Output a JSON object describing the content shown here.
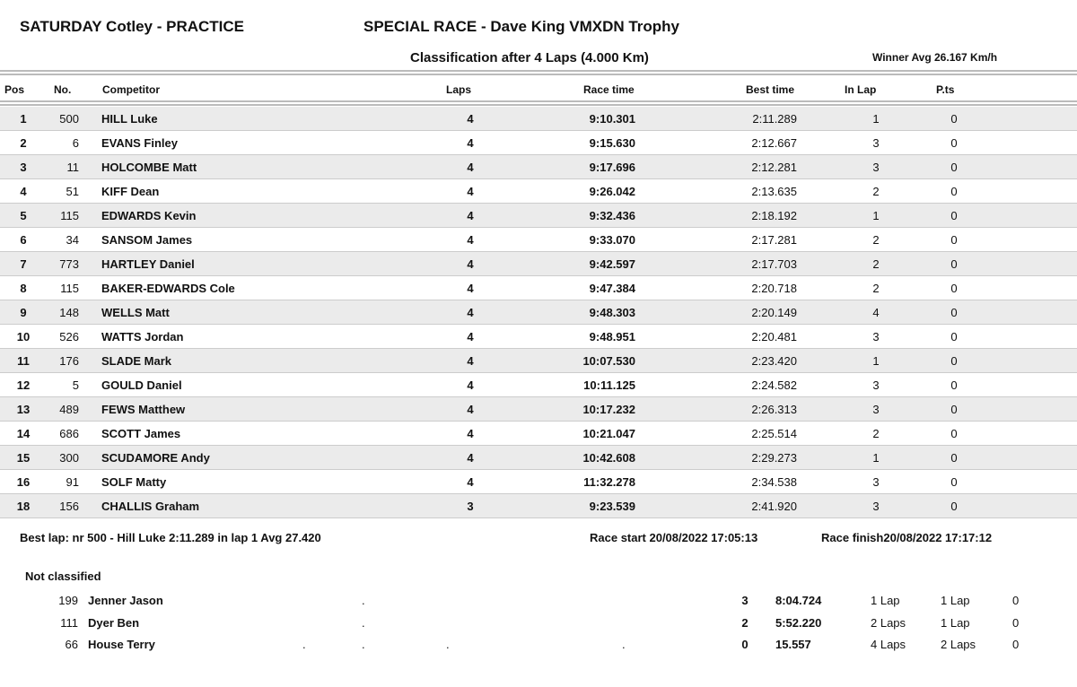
{
  "header": {
    "left_title": "SATURDAY Cotley - PRACTICE",
    "race_title": "SPECIAL RACE - Dave King VMXDN Trophy",
    "classification": "Classification after 4 Laps (4.000 Km)",
    "winner_avg": "Winner Avg 26.167 Km/h"
  },
  "columns": {
    "pos": "Pos",
    "no": "No.",
    "competitor": "Competitor",
    "laps": "Laps",
    "race_time": "Race time",
    "best_time": "Best time",
    "in_lap": "In Lap",
    "pts": "P.ts"
  },
  "rows": [
    {
      "pos": "1",
      "no": "500",
      "name": "HILL Luke",
      "laps": "4",
      "race_time": "9:10.301",
      "best_time": "2:11.289",
      "in_lap": "1",
      "pts": "0"
    },
    {
      "pos": "2",
      "no": "6",
      "name": "EVANS Finley",
      "laps": "4",
      "race_time": "9:15.630",
      "best_time": "2:12.667",
      "in_lap": "3",
      "pts": "0"
    },
    {
      "pos": "3",
      "no": "11",
      "name": "HOLCOMBE Matt",
      "laps": "4",
      "race_time": "9:17.696",
      "best_time": "2:12.281",
      "in_lap": "3",
      "pts": "0"
    },
    {
      "pos": "4",
      "no": "51",
      "name": "KIFF Dean",
      "laps": "4",
      "race_time": "9:26.042",
      "best_time": "2:13.635",
      "in_lap": "2",
      "pts": "0"
    },
    {
      "pos": "5",
      "no": "115",
      "name": "EDWARDS Kevin",
      "laps": "4",
      "race_time": "9:32.436",
      "best_time": "2:18.192",
      "in_lap": "1",
      "pts": "0"
    },
    {
      "pos": "6",
      "no": "34",
      "name": "SANSOM James",
      "laps": "4",
      "race_time": "9:33.070",
      "best_time": "2:17.281",
      "in_lap": "2",
      "pts": "0"
    },
    {
      "pos": "7",
      "no": "773",
      "name": "HARTLEY Daniel",
      "laps": "4",
      "race_time": "9:42.597",
      "best_time": "2:17.703",
      "in_lap": "2",
      "pts": "0"
    },
    {
      "pos": "8",
      "no": "115",
      "name": "BAKER-EDWARDS Cole",
      "laps": "4",
      "race_time": "9:47.384",
      "best_time": "2:20.718",
      "in_lap": "2",
      "pts": "0"
    },
    {
      "pos": "9",
      "no": "148",
      "name": "WELLS Matt",
      "laps": "4",
      "race_time": "9:48.303",
      "best_time": "2:20.149",
      "in_lap": "4",
      "pts": "0"
    },
    {
      "pos": "10",
      "no": "526",
      "name": "WATTS Jordan",
      "laps": "4",
      "race_time": "9:48.951",
      "best_time": "2:20.481",
      "in_lap": "3",
      "pts": "0"
    },
    {
      "pos": "11",
      "no": "176",
      "name": "SLADE Mark",
      "laps": "4",
      "race_time": "10:07.530",
      "best_time": "2:23.420",
      "in_lap": "1",
      "pts": "0"
    },
    {
      "pos": "12",
      "no": "5",
      "name": "GOULD Daniel",
      "laps": "4",
      "race_time": "10:11.125",
      "best_time": "2:24.582",
      "in_lap": "3",
      "pts": "0"
    },
    {
      "pos": "13",
      "no": "489",
      "name": "FEWS Matthew",
      "laps": "4",
      "race_time": "10:17.232",
      "best_time": "2:26.313",
      "in_lap": "3",
      "pts": "0"
    },
    {
      "pos": "14",
      "no": "686",
      "name": "SCOTT James",
      "laps": "4",
      "race_time": "10:21.047",
      "best_time": "2:25.514",
      "in_lap": "2",
      "pts": "0"
    },
    {
      "pos": "15",
      "no": "300",
      "name": "SCUDAMORE Andy",
      "laps": "4",
      "race_time": "10:42.608",
      "best_time": "2:29.273",
      "in_lap": "1",
      "pts": "0"
    },
    {
      "pos": "16",
      "no": "91",
      "name": "SOLF Matty",
      "laps": "4",
      "race_time": "11:32.278",
      "best_time": "2:34.538",
      "in_lap": "3",
      "pts": "0"
    },
    {
      "pos": "18",
      "no": "156",
      "name": "CHALLIS Graham",
      "laps": "3",
      "race_time": "9:23.539",
      "best_time": "2:41.920",
      "in_lap": "3",
      "pts": "0"
    }
  ],
  "footer": {
    "best_lap": "Best lap: nr 500 - Hill Luke 2:11.289 in lap 1 Avg 27.420",
    "race_start": "Race start 20/08/2022 17:05:13",
    "race_finish": "Race finish20/08/2022 17:17:12"
  },
  "not_classified": {
    "title": "Not classified",
    "rows": [
      {
        "no": "199",
        "name": "Jenner Jason",
        "dots": [
          "."
        ],
        "laps": "3",
        "time": "8:04.724",
        "a": "1 Lap",
        "b": "1 Lap",
        "pts": "0"
      },
      {
        "no": "111",
        "name": "Dyer Ben",
        "dots": [
          "."
        ],
        "laps": "2",
        "time": "5:52.220",
        "a": "2 Laps",
        "b": "1 Lap",
        "pts": "0"
      },
      {
        "no": "66",
        "name": "House Terry",
        "dots": [
          ".",
          ".",
          ".",
          "."
        ],
        "laps": "0",
        "time": "15.557",
        "a": "4 Laps",
        "b": "2 Laps",
        "pts": "0"
      }
    ]
  }
}
